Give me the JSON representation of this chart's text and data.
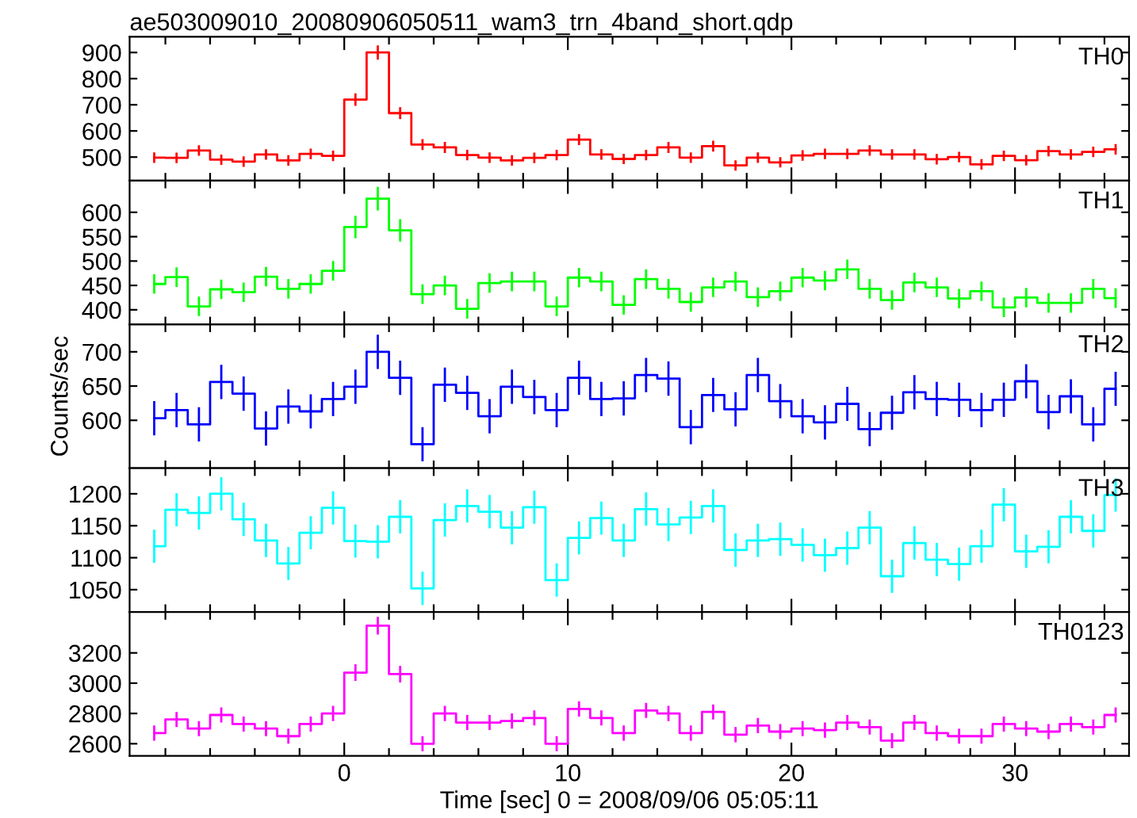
{
  "chart_data": [
    {
      "type": "step",
      "title": "ae503009010_20080906050511_wam3_trn_4band_short.qdp",
      "tick_labels": "y",
      "xlim": [
        -9.6,
        35.1
      ],
      "ylim": [
        410,
        960
      ],
      "yticks": [
        500,
        600,
        700,
        800,
        900
      ],
      "xticks": [
        {
          "value": -8,
          "label": null
        },
        {
          "value": -6,
          "label": null
        },
        {
          "value": -4,
          "label": null
        },
        {
          "value": -2,
          "label": null
        },
        0,
        {
          "value": 2,
          "label": null
        },
        {
          "value": 4,
          "label": null
        },
        {
          "value": 6,
          "label": null
        },
        {
          "value": 8,
          "label": null
        },
        10,
        {
          "value": 12,
          "label": null
        },
        {
          "value": 14,
          "label": null
        },
        {
          "value": 16,
          "label": null
        },
        {
          "value": 18,
          "label": null
        },
        20,
        {
          "value": 22,
          "label": null
        },
        {
          "value": 24,
          "label": null
        },
        {
          "value": 26,
          "label": null
        },
        {
          "value": 28,
          "label": null
        },
        30,
        {
          "value": 32,
          "label": null
        },
        {
          "value": 34,
          "label": null
        }
      ],
      "x": [
        -8.5,
        -7.5,
        -6.5,
        -5.5,
        -4.5,
        -3.5,
        -2.5,
        -1.5,
        -0.5,
        0.5,
        1.5,
        2.5,
        3.5,
        4.5,
        5.5,
        6.5,
        7.5,
        8.5,
        9.5,
        10.5,
        11.5,
        12.5,
        13.5,
        14.5,
        15.5,
        16.5,
        17.5,
        18.5,
        19.5,
        20.5,
        21.5,
        22.5,
        23.5,
        24.5,
        25.5,
        26.5,
        27.5,
        28.5,
        29.5,
        30.5,
        31.5,
        32.5,
        33.5,
        34.5
      ],
      "series": [
        {
          "name": "TH0",
          "color": "#ff0000",
          "values": [
            498,
            497,
            525,
            490,
            483,
            510,
            487,
            512,
            505,
            720,
            900,
            668,
            548,
            537,
            508,
            498,
            487,
            497,
            508,
            567,
            510,
            493,
            508,
            537,
            498,
            542,
            468,
            498,
            480,
            506,
            512,
            512,
            525,
            510,
            510,
            492,
            500,
            472,
            505,
            488,
            523,
            510,
            520,
            530
          ],
          "errors": [
            20,
            20,
            20,
            20,
            20,
            20,
            20,
            20,
            20,
            24,
            27,
            23,
            21,
            21,
            20,
            20,
            20,
            20,
            20,
            21,
            20,
            20,
            20,
            21,
            20,
            21,
            20,
            20,
            20,
            20,
            20,
            20,
            20,
            20,
            20,
            20,
            20,
            20,
            20,
            20,
            20,
            20,
            20,
            20
          ]
        }
      ]
    },
    {
      "type": "step",
      "tick_labels": "y",
      "xlim": [
        -9.6,
        35.1
      ],
      "ylim": [
        370,
        665
      ],
      "yticks": [
        400,
        450,
        500,
        550,
        600
      ],
      "xticks": [
        {
          "value": -8,
          "label": null
        },
        {
          "value": -6,
          "label": null
        },
        {
          "value": -4,
          "label": null
        },
        {
          "value": -2,
          "label": null
        },
        0,
        {
          "value": 2,
          "label": null
        },
        {
          "value": 4,
          "label": null
        },
        {
          "value": 6,
          "label": null
        },
        {
          "value": 8,
          "label": null
        },
        10,
        {
          "value": 12,
          "label": null
        },
        {
          "value": 14,
          "label": null
        },
        {
          "value": 16,
          "label": null
        },
        {
          "value": 18,
          "label": null
        },
        20,
        {
          "value": 22,
          "label": null
        },
        {
          "value": 24,
          "label": null
        },
        {
          "value": 26,
          "label": null
        },
        {
          "value": 28,
          "label": null
        },
        30,
        {
          "value": 32,
          "label": null
        },
        {
          "value": 34,
          "label": null
        }
      ],
      "x": [
        -8.5,
        -7.5,
        -6.5,
        -5.5,
        -4.5,
        -3.5,
        -2.5,
        -1.5,
        -0.5,
        0.5,
        1.5,
        2.5,
        3.5,
        4.5,
        5.5,
        6.5,
        7.5,
        8.5,
        9.5,
        10.5,
        11.5,
        12.5,
        13.5,
        14.5,
        15.5,
        16.5,
        17.5,
        18.5,
        19.5,
        20.5,
        21.5,
        22.5,
        23.5,
        24.5,
        25.5,
        26.5,
        27.5,
        28.5,
        29.5,
        30.5,
        31.5,
        32.5,
        33.5,
        34.5
      ],
      "series": [
        {
          "name": "TH1",
          "color": "#00ff00",
          "values": [
            453,
            467,
            407,
            442,
            436,
            468,
            443,
            453,
            480,
            570,
            628,
            563,
            432,
            450,
            402,
            455,
            458,
            458,
            407,
            466,
            458,
            410,
            463,
            443,
            416,
            446,
            458,
            426,
            438,
            466,
            460,
            483,
            443,
            420,
            456,
            446,
            423,
            438,
            405,
            425,
            414,
            414,
            443,
            424
          ],
          "errors": [
            20,
            20,
            20,
            20,
            20,
            20,
            20,
            20,
            20,
            23,
            24,
            23,
            20,
            20,
            20,
            20,
            20,
            20,
            20,
            20,
            20,
            20,
            20,
            20,
            20,
            20,
            20,
            20,
            20,
            20,
            20,
            20,
            20,
            20,
            20,
            20,
            20,
            20,
            20,
            20,
            20,
            20,
            20,
            20
          ]
        }
      ]
    },
    {
      "type": "step",
      "tick_labels": "y",
      "ylabel": "Counts/sec",
      "xlim": [
        -9.6,
        35.1
      ],
      "ylim": [
        530,
        740
      ],
      "yticks": [
        600,
        650,
        700
      ],
      "xticks": [
        {
          "value": -8,
          "label": null
        },
        {
          "value": -6,
          "label": null
        },
        {
          "value": -4,
          "label": null
        },
        {
          "value": -2,
          "label": null
        },
        0,
        {
          "value": 2,
          "label": null
        },
        {
          "value": 4,
          "label": null
        },
        {
          "value": 6,
          "label": null
        },
        {
          "value": 8,
          "label": null
        },
        10,
        {
          "value": 12,
          "label": null
        },
        {
          "value": 14,
          "label": null
        },
        {
          "value": 16,
          "label": null
        },
        {
          "value": 18,
          "label": null
        },
        20,
        {
          "value": 22,
          "label": null
        },
        {
          "value": 24,
          "label": null
        },
        {
          "value": 26,
          "label": null
        },
        {
          "value": 28,
          "label": null
        },
        30,
        {
          "value": 32,
          "label": null
        },
        {
          "value": 34,
          "label": null
        }
      ],
      "x": [
        -8.5,
        -7.5,
        -6.5,
        -5.5,
        -4.5,
        -3.5,
        -2.5,
        -1.5,
        -0.5,
        0.5,
        1.5,
        2.5,
        3.5,
        4.5,
        5.5,
        6.5,
        7.5,
        8.5,
        9.5,
        10.5,
        11.5,
        12.5,
        13.5,
        14.5,
        15.5,
        16.5,
        17.5,
        18.5,
        19.5,
        20.5,
        21.5,
        22.5,
        23.5,
        24.5,
        25.5,
        26.5,
        27.5,
        28.5,
        29.5,
        30.5,
        31.5,
        32.5,
        33.5,
        34.5
      ],
      "series": [
        {
          "name": "TH2",
          "color": "#0000ff",
          "values": [
            603,
            615,
            594,
            656,
            639,
            588,
            620,
            613,
            631,
            649,
            700,
            662,
            565,
            652,
            640,
            606,
            649,
            634,
            615,
            662,
            631,
            632,
            666,
            661,
            590,
            637,
            616,
            666,
            628,
            606,
            597,
            624,
            587,
            611,
            641,
            631,
            630,
            615,
            630,
            657,
            612,
            635,
            594,
            646
          ],
          "errors": [
            25,
            25,
            25,
            25,
            25,
            25,
            25,
            25,
            25,
            25,
            25,
            25,
            25,
            25,
            25,
            25,
            25,
            25,
            25,
            25,
            25,
            25,
            25,
            25,
            25,
            25,
            25,
            25,
            25,
            25,
            25,
            25,
            25,
            25,
            25,
            25,
            25,
            25,
            25,
            25,
            25,
            25,
            25,
            25
          ]
        }
      ]
    },
    {
      "type": "step",
      "tick_labels": "y",
      "xlim": [
        -9.6,
        35.1
      ],
      "ylim": [
        1015,
        1240
      ],
      "yticks": [
        1050,
        1100,
        1150,
        1200
      ],
      "xticks": [
        {
          "value": -8,
          "label": null
        },
        {
          "value": -6,
          "label": null
        },
        {
          "value": -4,
          "label": null
        },
        {
          "value": -2,
          "label": null
        },
        0,
        {
          "value": 2,
          "label": null
        },
        {
          "value": 4,
          "label": null
        },
        {
          "value": 6,
          "label": null
        },
        {
          "value": 8,
          "label": null
        },
        10,
        {
          "value": 12,
          "label": null
        },
        {
          "value": 14,
          "label": null
        },
        {
          "value": 16,
          "label": null
        },
        {
          "value": 18,
          "label": null
        },
        20,
        {
          "value": 22,
          "label": null
        },
        {
          "value": 24,
          "label": null
        },
        {
          "value": 26,
          "label": null
        },
        {
          "value": 28,
          "label": null
        },
        30,
        {
          "value": 32,
          "label": null
        },
        {
          "value": 34,
          "label": null
        }
      ],
      "x": [
        -8.5,
        -7.5,
        -6.5,
        -5.5,
        -4.5,
        -3.5,
        -2.5,
        -1.5,
        -0.5,
        0.5,
        1.5,
        2.5,
        3.5,
        4.5,
        5.5,
        6.5,
        7.5,
        8.5,
        9.5,
        10.5,
        11.5,
        12.5,
        13.5,
        14.5,
        15.5,
        16.5,
        17.5,
        18.5,
        19.5,
        20.5,
        21.5,
        22.5,
        23.5,
        24.5,
        25.5,
        26.5,
        27.5,
        28.5,
        29.5,
        30.5,
        31.5,
        32.5,
        33.5,
        34.5
      ],
      "series": [
        {
          "name": "TH3",
          "color": "#00ffff",
          "values": [
            1118,
            1175,
            1170,
            1200,
            1160,
            1127,
            1091,
            1139,
            1178,
            1126,
            1125,
            1164,
            1052,
            1159,
            1181,
            1172,
            1147,
            1179,
            1065,
            1131,
            1162,
            1127,
            1176,
            1152,
            1163,
            1181,
            1112,
            1127,
            1129,
            1120,
            1104,
            1115,
            1147,
            1071,
            1123,
            1097,
            1090,
            1118,
            1183,
            1110,
            1117,
            1164,
            1142,
            1198
          ],
          "errors": [
            26,
            26,
            26,
            26,
            26,
            26,
            26,
            26,
            26,
            26,
            26,
            26,
            26,
            26,
            26,
            26,
            26,
            26,
            26,
            26,
            26,
            26,
            26,
            26,
            26,
            26,
            26,
            26,
            26,
            26,
            26,
            26,
            26,
            26,
            26,
            26,
            26,
            26,
            26,
            26,
            26,
            26,
            26,
            26
          ]
        }
      ]
    },
    {
      "type": "step",
      "xlabel": "Time [sec] 0 = 2008/09/06 05:05:11",
      "xlim": [
        -9.6,
        35.1
      ],
      "ylim": [
        2520,
        3470
      ],
      "yticks": [
        2600,
        2800,
        3000,
        3200
      ],
      "xticks": [
        {
          "value": -8,
          "label": null
        },
        {
          "value": -6,
          "label": null
        },
        {
          "value": -4,
          "label": null
        },
        {
          "value": -2,
          "label": null
        },
        0,
        {
          "value": 2,
          "label": null
        },
        {
          "value": 4,
          "label": null
        },
        {
          "value": 6,
          "label": null
        },
        {
          "value": 8,
          "label": null
        },
        10,
        {
          "value": 12,
          "label": null
        },
        {
          "value": 14,
          "label": null
        },
        {
          "value": 16,
          "label": null
        },
        {
          "value": 18,
          "label": null
        },
        20,
        {
          "value": 22,
          "label": null
        },
        {
          "value": 24,
          "label": null
        },
        {
          "value": 26,
          "label": null
        },
        {
          "value": 28,
          "label": null
        },
        30,
        {
          "value": 32,
          "label": null
        },
        {
          "value": 34,
          "label": null
        }
      ],
      "x": [
        -8.5,
        -7.5,
        -6.5,
        -5.5,
        -4.5,
        -3.5,
        -2.5,
        -1.5,
        -0.5,
        0.5,
        1.5,
        2.5,
        3.5,
        4.5,
        5.5,
        6.5,
        7.5,
        8.5,
        9.5,
        10.5,
        11.5,
        12.5,
        13.5,
        14.5,
        15.5,
        16.5,
        17.5,
        18.5,
        19.5,
        20.5,
        21.5,
        22.5,
        23.5,
        24.5,
        25.5,
        26.5,
        27.5,
        28.5,
        29.5,
        30.5,
        31.5,
        32.5,
        33.5,
        34.5
      ],
      "series": [
        {
          "name": "TH0123",
          "color": "#ff00ff",
          "values": [
            2670,
            2760,
            2700,
            2790,
            2730,
            2700,
            2650,
            2730,
            2800,
            3070,
            3380,
            3060,
            2600,
            2800,
            2740,
            2740,
            2750,
            2770,
            2600,
            2830,
            2770,
            2670,
            2820,
            2800,
            2670,
            2810,
            2660,
            2720,
            2680,
            2700,
            2690,
            2740,
            2710,
            2620,
            2740,
            2670,
            2650,
            2650,
            2730,
            2700,
            2680,
            2730,
            2710,
            2790
          ],
          "errors": [
            50,
            50,
            50,
            50,
            50,
            50,
            50,
            50,
            50,
            55,
            58,
            55,
            50,
            50,
            50,
            50,
            50,
            50,
            50,
            50,
            50,
            50,
            50,
            50,
            50,
            50,
            50,
            50,
            50,
            50,
            50,
            50,
            50,
            50,
            50,
            50,
            50,
            50,
            50,
            50,
            50,
            50,
            50,
            50
          ]
        }
      ]
    }
  ]
}
